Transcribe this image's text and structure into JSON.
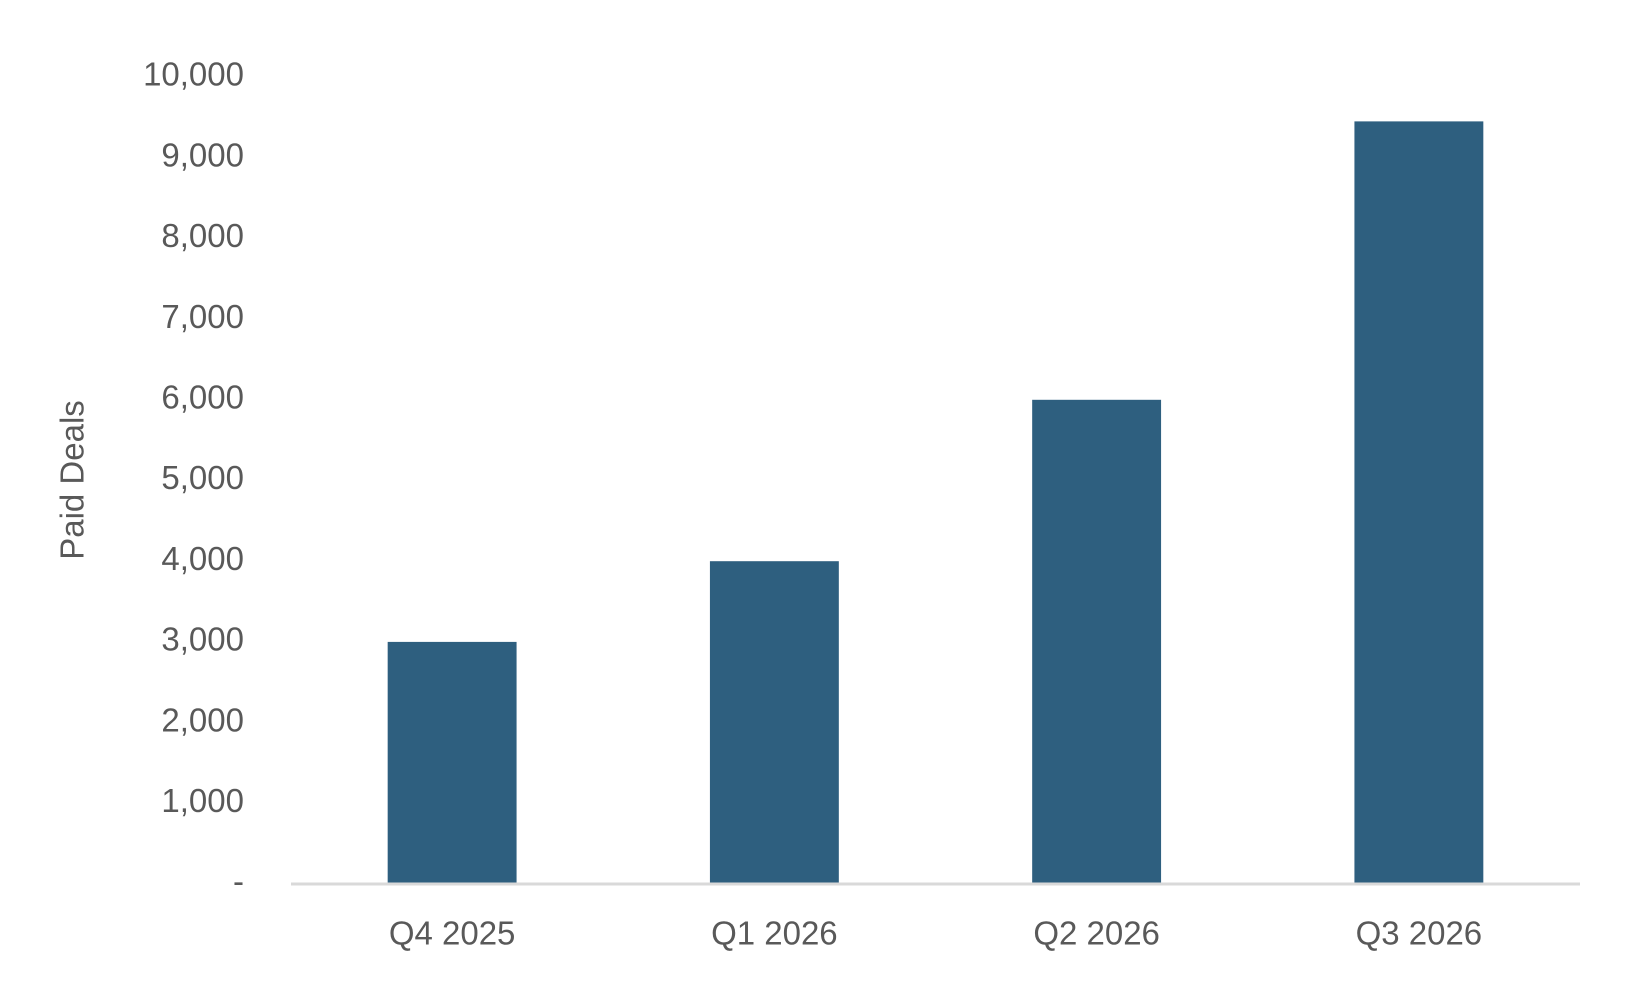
{
  "chart_data": {
    "type": "bar",
    "y_label": "Paid Deals",
    "categories": [
      "Q4 2025",
      "Q1 2026",
      "Q2 2026",
      "Q3 2026"
    ],
    "values": [
      3000,
      4000,
      6000,
      9450
    ],
    "color": "#2e5f7f",
    "ylim": [
      0,
      10000
    ],
    "yticks": [
      {
        "value": 0,
        "label": "-"
      },
      {
        "value": 1000,
        "label": "1,000"
      },
      {
        "value": 2000,
        "label": "2,000"
      },
      {
        "value": 3000,
        "label": "3,000"
      },
      {
        "value": 4000,
        "label": "4,000"
      },
      {
        "value": 5000,
        "label": "5,000"
      },
      {
        "value": 6000,
        "label": "6,000"
      },
      {
        "value": 7000,
        "label": "7,000"
      },
      {
        "value": 8000,
        "label": "8,000"
      },
      {
        "value": 9000,
        "label": "9,000"
      },
      {
        "value": 10000,
        "label": "10,000"
      }
    ],
    "grid": false
  }
}
